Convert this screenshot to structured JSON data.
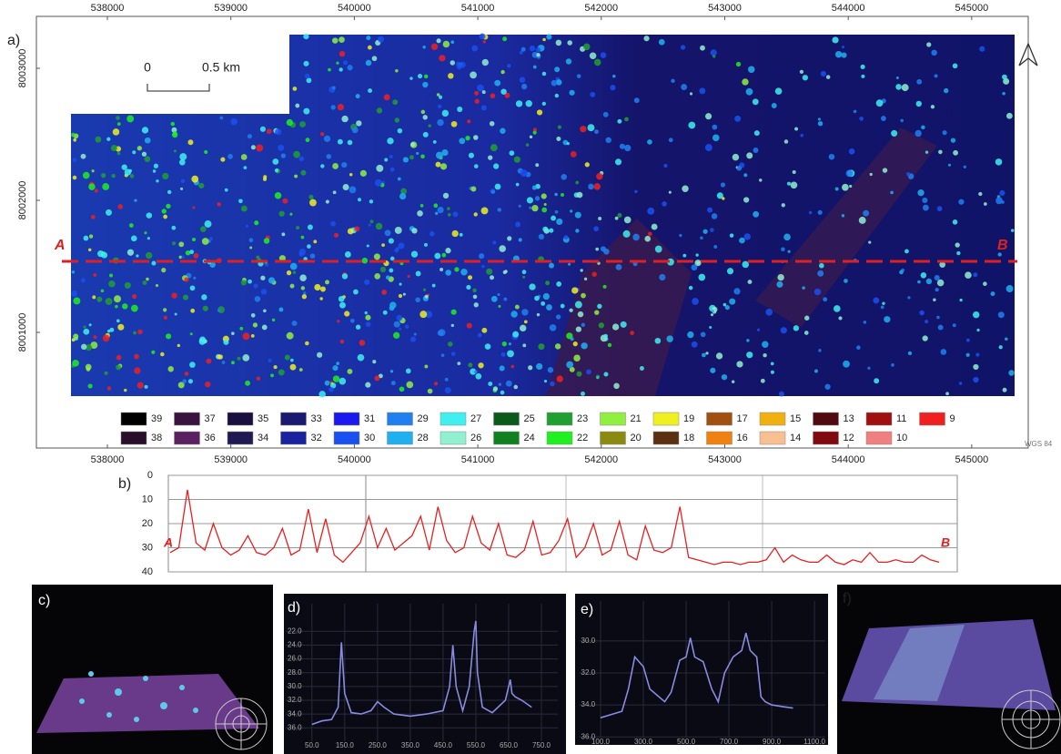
{
  "map": {
    "label": "a)",
    "xlim": [
      537425,
      545458
    ],
    "ylim": [
      8000124,
      8003393
    ],
    "xticks": [
      538000,
      539000,
      540000,
      541000,
      542000,
      543000,
      544000,
      545000
    ],
    "yticks": [
      8001000,
      8002000,
      8003000
    ],
    "scale_bar": {
      "start": "0",
      "end": "0.5 km"
    },
    "transect": {
      "start": "A",
      "end": "B"
    },
    "crs": "WGS 84",
    "legend": [
      {
        "value": 39,
        "color": "#000000"
      },
      {
        "value": 37,
        "color": "#3a1440"
      },
      {
        "value": 35,
        "color": "#1a1040"
      },
      {
        "value": 33,
        "color": "#1a1a70"
      },
      {
        "value": 31,
        "color": "#1a1af0"
      },
      {
        "value": 29,
        "color": "#2080f0"
      },
      {
        "value": 27,
        "color": "#40f0f0"
      },
      {
        "value": 25,
        "color": "#0a5a1a"
      },
      {
        "value": 23,
        "color": "#20a030"
      },
      {
        "value": 21,
        "color": "#90f040"
      },
      {
        "value": 19,
        "color": "#f0f020"
      },
      {
        "value": 17,
        "color": "#a05010"
      },
      {
        "value": 15,
        "color": "#f0b010"
      },
      {
        "value": 13,
        "color": "#500a10"
      },
      {
        "value": 11,
        "color": "#a01010"
      },
      {
        "value": 9,
        "color": "#f02020"
      },
      {
        "value": 38,
        "color": "#2a0e2a"
      },
      {
        "value": 36,
        "color": "#5a2060"
      },
      {
        "value": 34,
        "color": "#201a50"
      },
      {
        "value": 32,
        "color": "#1a22a0"
      },
      {
        "value": 30,
        "color": "#1a50f0"
      },
      {
        "value": 28,
        "color": "#20b0f0"
      },
      {
        "value": 26,
        "color": "#90f0d0"
      },
      {
        "value": 24,
        "color": "#108020"
      },
      {
        "value": 22,
        "color": "#20f020"
      },
      {
        "value": 20,
        "color": "#8a8a10"
      },
      {
        "value": 18,
        "color": "#5a3010"
      },
      {
        "value": 16,
        "color": "#f08010"
      },
      {
        "value": 14,
        "color": "#f8c090"
      },
      {
        "value": 12,
        "color": "#800a10"
      },
      {
        "value": 10,
        "color": "#f08080"
      }
    ]
  },
  "profile": {
    "label": "b)",
    "ylim": [
      0,
      40
    ],
    "yticks": [
      0,
      10,
      20,
      30,
      40
    ],
    "start": "A",
    "end": "B",
    "color": "#e82020",
    "values": [
      32,
      30,
      6,
      28,
      31,
      20,
      30,
      33,
      31,
      25,
      32,
      33,
      30,
      22,
      33,
      31,
      14,
      32,
      18,
      33,
      36,
      32,
      28,
      17,
      30,
      22,
      31,
      28,
      25,
      17,
      31,
      13,
      27,
      32,
      30,
      17,
      28,
      31,
      20,
      33,
      34,
      31,
      19,
      33,
      32,
      27,
      18,
      34,
      30,
      20,
      33,
      31,
      19,
      33,
      35,
      21,
      31,
      32,
      30,
      13,
      34,
      35,
      36,
      37,
      36,
      36,
      37,
      36,
      36,
      35,
      30,
      36,
      33,
      35,
      36,
      36,
      33,
      36,
      37,
      35,
      36,
      32,
      36,
      36,
      35,
      36,
      36,
      33,
      35,
      36
    ]
  },
  "view_c": {
    "label": "c)"
  },
  "profile_d": {
    "label": "d)",
    "color": "#8a8ae0",
    "xlim": [
      -30,
      800
    ],
    "ylim": [
      18,
      39
    ],
    "xticks": [
      {
        "value": 50,
        "label": "50.0"
      },
      {
        "value": 150,
        "label": "150.0"
      },
      {
        "value": 250,
        "label": "250.0"
      },
      {
        "value": 350,
        "label": "350.0"
      },
      {
        "value": 450,
        "label": "450.0"
      },
      {
        "value": 550,
        "label": "550.0"
      },
      {
        "value": 650,
        "label": "650.0"
      },
      {
        "value": 750,
        "label": "750.0"
      }
    ],
    "yticks": [
      {
        "value": 22,
        "label": "22.0"
      },
      {
        "value": 24,
        "label": "24.0"
      },
      {
        "value": 26,
        "label": "26.0"
      },
      {
        "value": 28,
        "label": "28.0"
      },
      {
        "value": 30,
        "label": "30.0"
      },
      {
        "value": 32,
        "label": "32.0"
      },
      {
        "value": 34,
        "label": "34.0"
      },
      {
        "value": 36,
        "label": "36.0"
      }
    ],
    "x": [
      50,
      80,
      110,
      130,
      140,
      150,
      170,
      200,
      230,
      250,
      270,
      300,
      350,
      400,
      450,
      470,
      480,
      490,
      510,
      530,
      545,
      550,
      555,
      570,
      600,
      640,
      655,
      660,
      670,
      690,
      720
    ],
    "values": [
      35.5,
      35,
      34.8,
      33,
      23.6,
      31,
      33.8,
      34,
      33.5,
      32.2,
      33,
      34,
      34.3,
      34,
      33.5,
      30,
      24,
      30,
      33.5,
      30,
      22,
      20.5,
      28,
      33,
      33.8,
      32,
      29,
      31,
      31.5,
      32,
      33
    ]
  },
  "profile_e": {
    "label": "e)",
    "color": "#8a8ae0",
    "xlim": [
      0,
      1150
    ],
    "ylim": [
      27.5,
      36.5
    ],
    "xticks": [
      {
        "value": 100,
        "label": "100.0"
      },
      {
        "value": 300,
        "label": "300.0"
      },
      {
        "value": 500,
        "label": "500.0"
      },
      {
        "value": 700,
        "label": "700.0"
      },
      {
        "value": 900,
        "label": "900.0"
      },
      {
        "value": 1100,
        "label": "1100.0"
      }
    ],
    "yticks": [
      {
        "value": 30,
        "label": "30.0"
      },
      {
        "value": 32,
        "label": "32.0"
      },
      {
        "value": 34,
        "label": "34.0"
      },
      {
        "value": 36,
        "label": "36.0"
      }
    ],
    "x": [
      100,
      150,
      200,
      230,
      260,
      300,
      330,
      400,
      430,
      470,
      500,
      520,
      540,
      580,
      620,
      650,
      680,
      720,
      760,
      780,
      800,
      830,
      850,
      870,
      900,
      950,
      1000
    ],
    "values": [
      34.8,
      34.6,
      34.4,
      33,
      31,
      31.6,
      33,
      33.8,
      33.2,
      31.2,
      31,
      29.8,
      31,
      31.3,
      33,
      33.8,
      32,
      31,
      30.6,
      29.5,
      30.6,
      31,
      33.5,
      33.8,
      34,
      34.1,
      34.2
    ]
  },
  "view_f": {
    "label": "f)"
  }
}
